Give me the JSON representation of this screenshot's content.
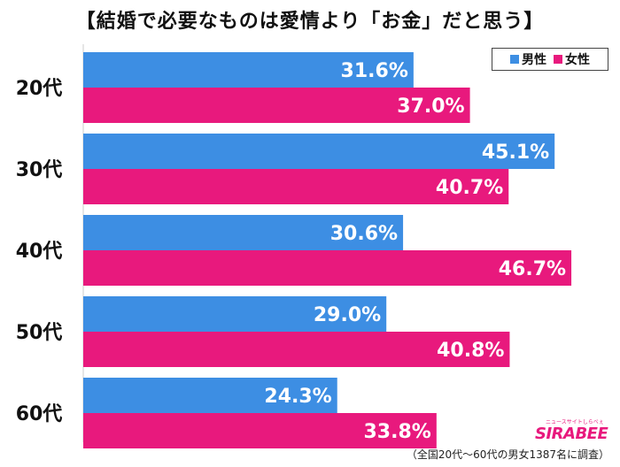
{
  "title": "【結婚で必要なものは愛情より「お金」だと思う】",
  "legend": {
    "male_label": "男性",
    "female_label": "女性",
    "male_color": "#3d8ee3",
    "female_color": "#e8197d"
  },
  "footnote": "（全国20代～60代の男女1387名に調査）",
  "logo": {
    "main": "SIRABEE",
    "sub": "ニュースサイトしらべぇ"
  },
  "chart_data": {
    "type": "bar",
    "orientation": "horizontal",
    "categories": [
      "20代",
      "30代",
      "40代",
      "50代",
      "60代"
    ],
    "series": [
      {
        "name": "男性",
        "color": "#3d8ee3",
        "values": [
          31.6,
          45.1,
          30.6,
          29.0,
          24.3
        ],
        "labels": [
          "31.6%",
          "45.1%",
          "30.6%",
          "29.0%",
          "24.3%"
        ]
      },
      {
        "name": "女性",
        "color": "#e8197d",
        "values": [
          37.0,
          40.7,
          46.7,
          40.8,
          33.8
        ],
        "labels": [
          "37.0%",
          "40.7%",
          "46.7%",
          "40.8%",
          "33.8%"
        ]
      }
    ],
    "xlim": [
      0,
      50
    ],
    "grid": false,
    "legend_position": "top-right"
  }
}
